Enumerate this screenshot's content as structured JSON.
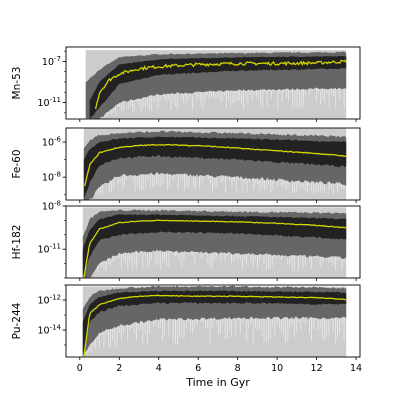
{
  "chart_data": {
    "type": "area",
    "xlabel": "Time in Gyr",
    "xlim": [
      -0.7,
      14.2
    ],
    "x_ticks": [
      0,
      2,
      4,
      6,
      8,
      10,
      12,
      14
    ],
    "x_tick_labels": [
      "0",
      "2",
      "4",
      "6",
      "8",
      "10",
      "12",
      "14"
    ],
    "grid": false,
    "colors": {
      "median": "#d4d400",
      "band_1sigma": "#222222",
      "band_2sigma": "#666666",
      "band_full": "#cccccc"
    },
    "panels": [
      {
        "ylabel": "Mn-53",
        "yscale": "log",
        "ylim_log10": [
          -12.6,
          -5.6
        ],
        "y_ticks_log10": [
          -7,
          -11
        ],
        "y_tick_labels": [
          "10^-7",
          "10^-11"
        ],
        "onset_gyr": 0.3,
        "median": {
          "x": [
            0.8,
            1,
            1.5,
            2,
            3,
            4,
            6,
            8,
            10,
            12,
            13.5
          ],
          "log10_y": [
            -11.5,
            -10.0,
            -8.8,
            -8.2,
            -7.7,
            -7.5,
            -7.3,
            -7.2,
            -7.2,
            -7.15,
            -7.0
          ]
        },
        "band_1sigma": {
          "x": [
            0.5,
            1,
            2,
            4,
            8,
            13.5
          ],
          "log10_lo": [
            -12.6,
            -11.5,
            -9.2,
            -8.3,
            -7.9,
            -7.7
          ],
          "log10_hi": [
            -10.8,
            -9.0,
            -7.3,
            -6.8,
            -6.6,
            -6.5
          ]
        },
        "band_2sigma": {
          "x": [
            0.3,
            1,
            2,
            4,
            8,
            13.5
          ],
          "log10_lo": [
            -12.6,
            -12.6,
            -11.0,
            -10.2,
            -9.8,
            -9.6
          ],
          "log10_hi": [
            -9.0,
            -7.8,
            -6.6,
            -6.3,
            -6.2,
            -6.1
          ]
        },
        "band_full": {
          "x": [
            0.3,
            13.5
          ],
          "log10_lo": [
            -12.6,
            -12.6
          ],
          "log10_hi": [
            -5.9,
            -5.9
          ]
        }
      },
      {
        "ylabel": "Fe-60",
        "yscale": "log",
        "ylim_log10": [
          -9.3,
          -5.2
        ],
        "y_ticks_log10": [
          -6,
          -8
        ],
        "y_tick_labels": [
          "10^-6",
          "10^-8"
        ],
        "onset_gyr": 0.2,
        "median": {
          "x": [
            0.25,
            0.5,
            1,
            2,
            3,
            4,
            6,
            8,
            10,
            12,
            13.5
          ],
          "log10_y": [
            -8.5,
            -7.3,
            -6.6,
            -6.3,
            -6.2,
            -6.15,
            -6.2,
            -6.35,
            -6.5,
            -6.65,
            -6.8
          ]
        },
        "band_1sigma": {
          "x": [
            0.2,
            0.5,
            1,
            2,
            4,
            8,
            13.5
          ],
          "log10_lo": [
            -9.3,
            -8.3,
            -7.3,
            -6.9,
            -6.8,
            -7.0,
            -7.4
          ],
          "log10_hi": [
            -7.0,
            -6.4,
            -6.0,
            -5.8,
            -5.7,
            -5.8,
            -6.0
          ]
        },
        "band_2sigma": {
          "x": [
            0.2,
            0.5,
            1,
            2,
            4,
            8,
            13.5
          ],
          "log10_lo": [
            -9.3,
            -9.3,
            -8.6,
            -7.9,
            -7.8,
            -8.0,
            -8.4
          ],
          "log10_hi": [
            -6.3,
            -5.9,
            -5.6,
            -5.5,
            -5.4,
            -5.5,
            -5.7
          ]
        },
        "band_full": {
          "x": [
            0.2,
            13.5
          ],
          "log10_lo": [
            -9.3,
            -9.3
          ],
          "log10_hi": [
            -5.2,
            -5.2
          ]
        }
      },
      {
        "ylabel": "Hf-182",
        "yscale": "log",
        "ylim_log10": [
          -13.0,
          -8.0
        ],
        "y_ticks_log10": [
          -8,
          -11
        ],
        "y_tick_labels": [
          "10^-8",
          "10^-11"
        ],
        "onset_gyr": 0.15,
        "median": {
          "x": [
            0.2,
            0.5,
            1,
            2,
            3,
            4,
            6,
            8,
            10,
            12,
            13.5
          ],
          "log10_y": [
            -13.0,
            -10.6,
            -9.6,
            -9.15,
            -9.05,
            -9.0,
            -9.05,
            -9.1,
            -9.2,
            -9.35,
            -9.5
          ]
        },
        "band_1sigma": {
          "x": [
            0.15,
            0.5,
            1,
            2,
            4,
            8,
            13.5
          ],
          "log10_lo": [
            -13.0,
            -11.5,
            -10.4,
            -10.0,
            -9.8,
            -9.9,
            -10.3
          ],
          "log10_hi": [
            -11.0,
            -9.7,
            -8.9,
            -8.6,
            -8.6,
            -8.7,
            -8.9
          ]
        },
        "band_2sigma": {
          "x": [
            0.15,
            0.5,
            1,
            2,
            4,
            8,
            13.5
          ],
          "log10_lo": [
            -13.0,
            -13.0,
            -12.0,
            -11.3,
            -11.1,
            -11.3,
            -11.6
          ],
          "log10_hi": [
            -10.2,
            -8.9,
            -8.4,
            -8.3,
            -8.3,
            -8.4,
            -8.5
          ]
        },
        "band_full": {
          "x": [
            0.15,
            13.5
          ],
          "log10_lo": [
            -13.0,
            -13.0
          ],
          "log10_hi": [
            -8.1,
            -8.1
          ]
        }
      },
      {
        "ylabel": "Pu-244",
        "yscale": "log",
        "ylim_log10": [
          -15.8,
          -11.0
        ],
        "y_ticks_log10": [
          -12,
          -14
        ],
        "y_tick_labels": [
          "10^-12",
          "10^-14"
        ],
        "onset_gyr": 0.15,
        "median": {
          "x": [
            0.2,
            0.5,
            1,
            2,
            3,
            4,
            6,
            8,
            10,
            12,
            13.5
          ],
          "log10_y": [
            -15.8,
            -12.9,
            -12.3,
            -11.9,
            -11.75,
            -11.7,
            -11.75,
            -11.75,
            -11.8,
            -11.85,
            -11.95
          ]
        },
        "band_1sigma": {
          "x": [
            0.15,
            0.5,
            1,
            2,
            4,
            8,
            13.5
          ],
          "log10_lo": [
            -15.8,
            -13.5,
            -12.8,
            -12.4,
            -12.2,
            -12.2,
            -12.3
          ],
          "log10_hi": [
            -13.5,
            -12.3,
            -11.8,
            -11.5,
            -11.4,
            -11.4,
            -11.5
          ]
        },
        "band_2sigma": {
          "x": [
            0.15,
            0.5,
            1,
            2,
            4,
            8,
            13.5
          ],
          "log10_lo": [
            -15.8,
            -15.0,
            -14.2,
            -13.7,
            -13.3,
            -13.2,
            -13.2
          ],
          "log10_hi": [
            -12.6,
            -11.8,
            -11.4,
            -11.2,
            -11.1,
            -11.1,
            -11.2
          ]
        },
        "band_full": {
          "x": [
            0.15,
            13.5
          ],
          "log10_lo": [
            -15.8,
            -15.8
          ],
          "log10_hi": [
            -11.1,
            -11.1
          ]
        }
      }
    ]
  }
}
